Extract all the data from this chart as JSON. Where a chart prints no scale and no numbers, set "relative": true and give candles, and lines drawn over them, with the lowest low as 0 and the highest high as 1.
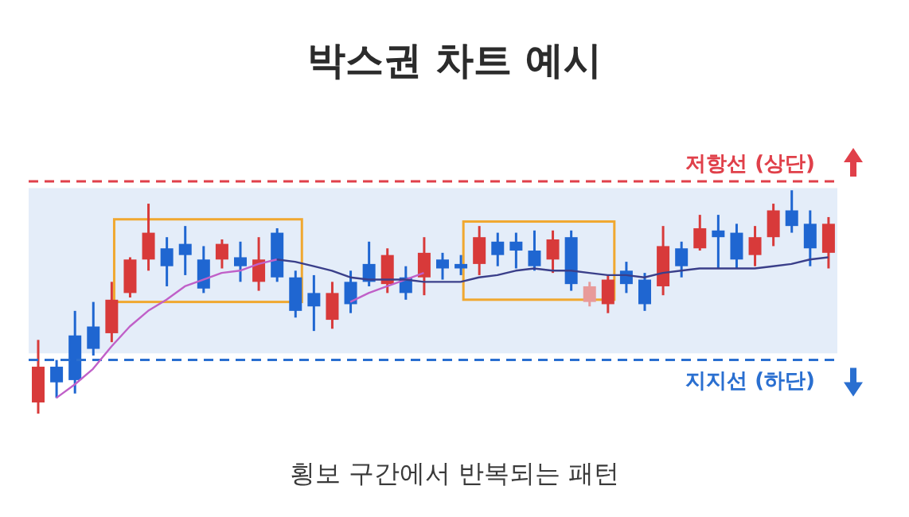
{
  "chart_data": {
    "type": "candlestick",
    "title": "박스권 차트 예시",
    "relative": true,
    "categories": [
      null,
      null,
      null,
      null,
      null,
      null,
      null,
      null,
      null,
      null,
      null,
      null,
      null,
      null,
      null,
      null,
      null,
      null,
      null,
      null,
      null,
      null,
      null,
      null,
      null,
      null,
      null,
      null,
      null,
      null,
      null,
      null,
      null,
      null,
      null,
      null,
      null,
      null,
      null,
      null,
      null,
      null,
      null,
      null
    ],
    "ohlc": [
      [
        0.05,
        0.33,
        0,
        0.21
      ],
      [
        0.21,
        0.24,
        0.07,
        0.14
      ],
      [
        0.35,
        0.46,
        0.09,
        0.15
      ],
      [
        0.39,
        0.5,
        0.26,
        0.29
      ],
      [
        0.36,
        0.59,
        0.32,
        0.51
      ],
      [
        0.54,
        0.7,
        0.52,
        0.69
      ],
      [
        0.69,
        0.94,
        0.64,
        0.81
      ],
      [
        0.74,
        0.79,
        0.57,
        0.66
      ],
      [
        0.76,
        0.84,
        0.62,
        0.71
      ],
      [
        0.69,
        0.75,
        0.54,
        0.56
      ],
      [
        0.69,
        0.78,
        0.65,
        0.76
      ],
      [
        0.7,
        0.77,
        0.59,
        0.66
      ],
      [
        0.59,
        0.79,
        0.55,
        0.69
      ],
      [
        0.81,
        0.83,
        0.59,
        0.61
      ],
      [
        0.61,
        0.64,
        0.43,
        0.46
      ],
      [
        0.54,
        0.62,
        0.37,
        0.48
      ],
      [
        0.42,
        0.59,
        0.38,
        0.54
      ],
      [
        0.59,
        0.64,
        0.45,
        0.49
      ],
      [
        0.67,
        0.77,
        0.57,
        0.59
      ],
      [
        0.58,
        0.74,
        0.54,
        0.71
      ],
      [
        0.61,
        0.66,
        0.51,
        0.54
      ],
      [
        0.61,
        0.79,
        0.53,
        0.72
      ],
      [
        0.69,
        0.72,
        0.6,
        0.65
      ],
      [
        0.67,
        0.71,
        0.62,
        0.65
      ],
      [
        0.67,
        0.84,
        0.62,
        0.79
      ],
      [
        0.77,
        0.81,
        0.66,
        0.71
      ],
      [
        0.77,
        0.81,
        0.65,
        0.73
      ],
      [
        0.73,
        0.82,
        0.64,
        0.66
      ],
      [
        0.69,
        0.82,
        0.63,
        0.78
      ],
      [
        0.79,
        0.82,
        0.55,
        0.58
      ],
      [
        0.5,
        0.59,
        0.48,
        0.57
      ],
      [
        0.49,
        0.62,
        0.45,
        0.6
      ],
      [
        0.64,
        0.68,
        0.54,
        0.58
      ],
      [
        0.6,
        0.63,
        0.46,
        0.49
      ],
      [
        0.57,
        0.84,
        0.53,
        0.75
      ],
      [
        0.74,
        0.77,
        0.61,
        0.66
      ],
      [
        0.74,
        0.89,
        0.73,
        0.83
      ],
      [
        0.82,
        0.89,
        0.65,
        0.79
      ],
      [
        0.81,
        0.85,
        0.65,
        0.69
      ],
      [
        0.71,
        0.84,
        0.66,
        0.79
      ],
      [
        0.79,
        0.94,
        0.75,
        0.91
      ],
      [
        0.91,
        1,
        0.81,
        0.84
      ],
      [
        0.85,
        0.91,
        0.66,
        0.74
      ],
      [
        0.72,
        0.88,
        0.65,
        0.85
      ]
    ],
    "colors": [
      "#d83a3a",
      "#1f66d1",
      "#1f66d1",
      "#1f66d1",
      "#d83a3a",
      "#d83a3a",
      "#d83a3a",
      "#1f66d1",
      "#1f66d1",
      "#1f66d1",
      "#d83a3a",
      "#1f66d1",
      "#d83a3a",
      "#1f66d1",
      "#1f66d1",
      "#1f66d1",
      "#d83a3a",
      "#1f66d1",
      "#1f66d1",
      "#d83a3a",
      "#1f66d1",
      "#d83a3a",
      "#1f66d1",
      "#1f66d1",
      "#d83a3a",
      "#1f66d1",
      "#1f66d1",
      "#1f66d1",
      "#d83a3a",
      "#1f66d1",
      "#e89a9a",
      "#d83a3a",
      "#1f66d1",
      "#1f66d1",
      "#d83a3a",
      "#1f66d1",
      "#d83a3a",
      "#1f66d1",
      "#1f66d1",
      "#d83a3a",
      "#d83a3a",
      "#1f66d1",
      "#1f66d1",
      "#d83a3a"
    ],
    "series": [
      {
        "type": "line",
        "color": "#c060c8",
        "values": [
          null,
          0.07,
          0.13,
          0.2,
          0.3,
          0.39,
          0.46,
          0.51,
          0.57,
          0.6,
          0.63,
          0.64,
          0.67,
          0.69,
          null,
          null,
          null,
          0.5,
          0.54,
          0.57,
          0.6,
          0.63,
          null,
          null,
          null,
          null,
          null,
          null,
          null,
          null,
          null,
          null,
          null,
          null,
          null,
          null,
          null,
          null,
          null,
          null,
          null,
          null,
          null,
          null
        ]
      },
      {
        "type": "line",
        "color": "#3a3f8a",
        "values": [
          null,
          null,
          null,
          null,
          null,
          null,
          null,
          null,
          null,
          null,
          null,
          null,
          null,
          0.69,
          0.68,
          0.66,
          0.64,
          0.61,
          0.6,
          0.6,
          0.6,
          0.59,
          0.59,
          0.59,
          0.61,
          0.62,
          0.64,
          0.65,
          0.64,
          0.64,
          0.63,
          0.62,
          0.62,
          0.61,
          0.63,
          0.64,
          0.65,
          0.65,
          0.65,
          0.65,
          0.66,
          0.67,
          0.69,
          0.7
        ]
      }
    ],
    "ref_lines": [
      {
        "axis": "y",
        "value": 1.04,
        "label": "저항선 (상단)",
        "color": "#e0404a",
        "line_style": "dashed"
      },
      {
        "axis": "y",
        "value": 0.24,
        "label": "지지선 (하단)",
        "color": "#2a6fd0",
        "line_style": "dashed"
      }
    ],
    "bands": [
      {
        "axis": "y",
        "from": 0.27,
        "to": 1.01,
        "color": "#e4edf9"
      }
    ],
    "annotations": [
      "횡보 구간에서 반복되는 패턴"
    ]
  }
}
